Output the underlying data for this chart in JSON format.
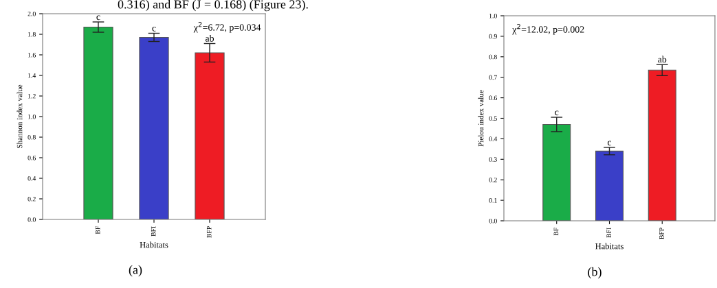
{
  "chart_data": [
    {
      "type": "bar",
      "ylabel": "Shannon index value",
      "xlabel": "Habitats",
      "categories": [
        "BF",
        "BFI",
        "BFP"
      ],
      "values": [
        1.87,
        1.77,
        1.62
      ],
      "errors": [
        0.05,
        0.04,
        0.09
      ],
      "colors": [
        "#1aac48",
        "#3a3fc8",
        "#ee1c24"
      ],
      "ylim": [
        0,
        2.0
      ],
      "yticks": [
        {
          "value": 0,
          "label": "0.0"
        },
        0.2,
        0.4,
        0.6,
        0.8,
        {
          "value": 1,
          "label": "1.0"
        },
        1.2,
        1.4,
        1.6,
        1.8,
        {
          "value": 2,
          "label": "2.0"
        }
      ],
      "grid": false,
      "legend": false,
      "annotations": [
        "χ$^{2}$=6.72, p=0.034",
        "(a)",
        "0.316) and BF (J = 0.168) (Figure 23).",
        {
          "text": "c",
          "x": "BF",
          "y": 1.92
        },
        {
          "text": "c",
          "x": "BFI",
          "y": 1.81
        },
        {
          "text": "ab",
          "x": "BFP",
          "y": 1.71
        }
      ]
    },
    {
      "type": "bar",
      "ylabel": "Pielou index value",
      "xlabel": "Habitats",
      "categories": [
        "BF",
        "BFI",
        "BFP"
      ],
      "values": [
        0.47,
        0.34,
        0.735
      ],
      "errors": [
        0.035,
        0.018,
        0.027
      ],
      "colors": [
        "#1aac48",
        "#3a3fc8",
        "#ee1c24"
      ],
      "ylim": [
        0,
        1.0
      ],
      "yticks": [
        {
          "value": 0,
          "label": "0.0"
        },
        0.1,
        0.2,
        0.3,
        0.4,
        0.5,
        0.6,
        0.7,
        0.8,
        0.9,
        {
          "value": 1,
          "label": "1.0"
        }
      ],
      "grid": false,
      "legend": false,
      "annotations": [
        "χ$^{2}$=12.02, p=0.002",
        "(b)",
        {
          "text": "c",
          "x": "BF",
          "y": 0.505
        },
        {
          "text": "c",
          "x": "BFI",
          "y": 0.358
        },
        {
          "text": "ab",
          "x": "BFP",
          "y": 0.762
        }
      ]
    }
  ]
}
